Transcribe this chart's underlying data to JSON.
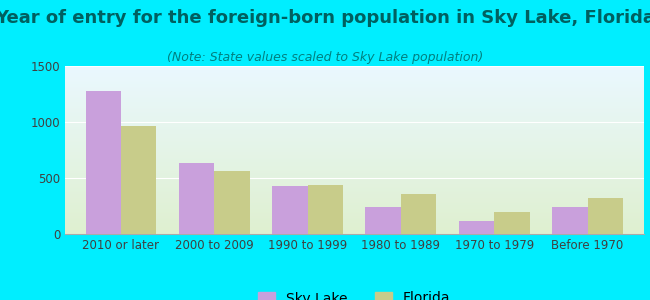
{
  "title": "Year of entry for the foreign-born population in Sky Lake, Florida",
  "subtitle": "(Note: State values scaled to Sky Lake population)",
  "categories": [
    "2010 or later",
    "2000 to 2009",
    "1990 to 1999",
    "1980 to 1989",
    "1970 to 1979",
    "Before 1970"
  ],
  "sky_lake_values": [
    1280,
    630,
    430,
    240,
    115,
    240
  ],
  "florida_values": [
    960,
    560,
    435,
    355,
    200,
    320
  ],
  "sky_lake_color": "#c9a0dc",
  "florida_color": "#c8cc8a",
  "background_outer": "#00eeff",
  "background_inner_top": "#eaf8ff",
  "background_inner_bottom": "#dff0d0",
  "title_color": "#006060",
  "subtitle_color": "#008080",
  "tick_color": "#404040",
  "ylim": [
    0,
    1500
  ],
  "yticks": [
    0,
    500,
    1000,
    1500
  ],
  "bar_width": 0.38,
  "title_fontsize": 13,
  "subtitle_fontsize": 9,
  "tick_fontsize": 8.5,
  "legend_fontsize": 10
}
